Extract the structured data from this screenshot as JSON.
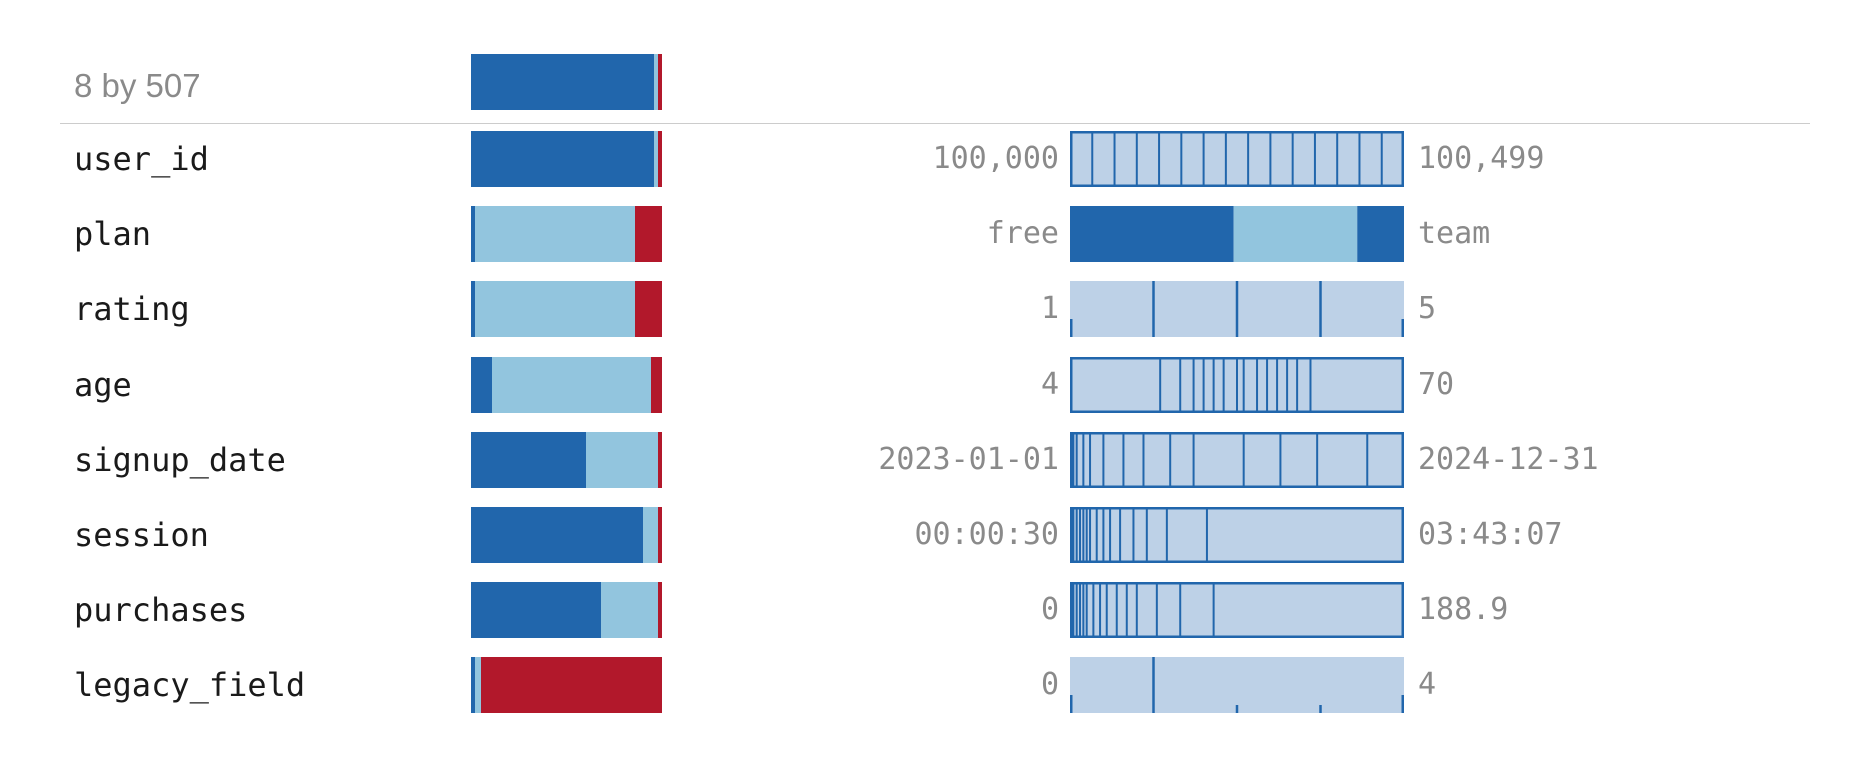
{
  "summary": {
    "label": "8 by 507"
  },
  "colors": {
    "valid": "#2166ac",
    "distinct": "#92c5de",
    "missing": "#b2182b",
    "hist_fill": "#bdd1e7",
    "hist_line": "#2166ac"
  },
  "chart_data": {
    "type": "table",
    "title": "",
    "columns": [
      {
        "name": "user_id",
        "quality": {
          "valid": 0.96,
          "distinct": 0.02,
          "missing": 0.02
        },
        "min": "100,000",
        "max": "100,499",
        "hist_kind": "bins",
        "bins": 15
      },
      {
        "name": "plan",
        "quality": {
          "valid": 0.02,
          "distinct": 0.84,
          "missing": 0.14
        },
        "min": "free",
        "max": "team",
        "hist_kind": "categories",
        "categories": [
          0.49,
          0.37,
          0.14
        ]
      },
      {
        "name": "rating",
        "quality": {
          "valid": 0.02,
          "distinct": 0.84,
          "missing": 0.14
        },
        "min": "1",
        "max": "5",
        "hist_kind": "sparse",
        "ticks": [
          0.0,
          0.25,
          0.5,
          0.75,
          1.0
        ]
      },
      {
        "name": "age",
        "quality": {
          "valid": 0.11,
          "distinct": 0.83,
          "missing": 0.06
        },
        "min": "4",
        "max": "70",
        "hist_kind": "dividers",
        "dividers": [
          0.27,
          0.33,
          0.37,
          0.4,
          0.43,
          0.46,
          0.5,
          0.52,
          0.56,
          0.59,
          0.62,
          0.65,
          0.68,
          0.72
        ]
      },
      {
        "name": "signup_date",
        "quality": {
          "valid": 0.6,
          "distinct": 0.38,
          "missing": 0.02
        },
        "min": "2023-01-01",
        "max": "2024-12-31",
        "hist_kind": "dividers",
        "dividers": [
          0.01,
          0.02,
          0.04,
          0.06,
          0.1,
          0.16,
          0.22,
          0.3,
          0.37,
          0.52,
          0.63,
          0.74,
          0.89
        ]
      },
      {
        "name": "session",
        "quality": {
          "valid": 0.9,
          "distinct": 0.08,
          "missing": 0.02
        },
        "min": "00:00:30",
        "max": "03:43:07",
        "hist_kind": "dividers",
        "dividers": [
          0.01,
          0.02,
          0.03,
          0.04,
          0.05,
          0.06,
          0.08,
          0.1,
          0.12,
          0.15,
          0.19,
          0.23,
          0.29,
          0.41
        ]
      },
      {
        "name": "purchases",
        "quality": {
          "valid": 0.68,
          "distinct": 0.3,
          "missing": 0.02
        },
        "min": "0",
        "max": "188.9",
        "hist_kind": "dividers",
        "dividers": [
          0.01,
          0.02,
          0.03,
          0.04,
          0.05,
          0.07,
          0.09,
          0.11,
          0.14,
          0.17,
          0.2,
          0.26,
          0.33,
          0.43
        ]
      },
      {
        "name": "legacy_field",
        "quality": {
          "valid": 0.02,
          "distinct": 0.03,
          "missing": 0.95
        },
        "min": "0",
        "max": "4",
        "hist_kind": "sparse",
        "ticks": [
          0.0,
          0.25,
          0.5,
          0.75,
          1.0
        ]
      }
    ]
  }
}
